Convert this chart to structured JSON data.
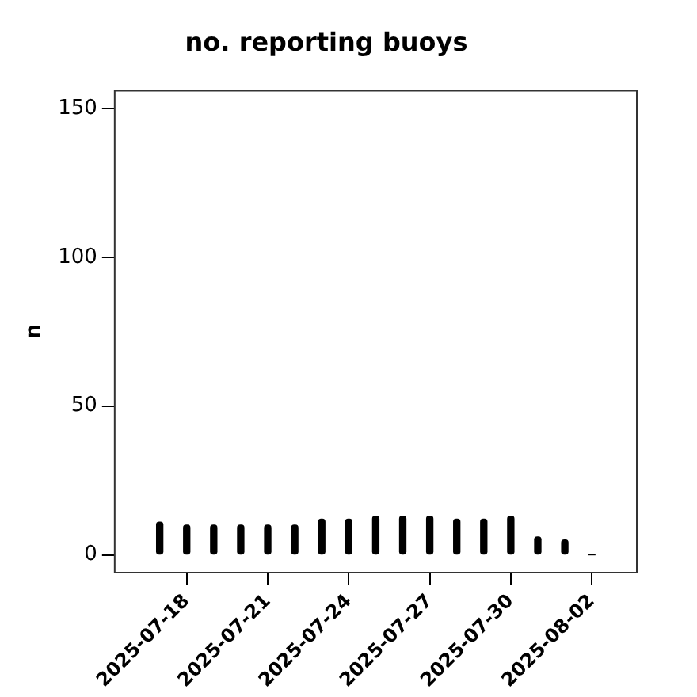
{
  "chart_data": {
    "type": "bar",
    "title": "no. reporting buoys",
    "ylabel": "n",
    "x": [
      "2025-07-17",
      "2025-07-18",
      "2025-07-19",
      "2025-07-20",
      "2025-07-21",
      "2025-07-22",
      "2025-07-23",
      "2025-07-24",
      "2025-07-25",
      "2025-07-26",
      "2025-07-27",
      "2025-07-28",
      "2025-07-29",
      "2025-07-30",
      "2025-07-31",
      "2025-08-01",
      "2025-08-02"
    ],
    "values": [
      11,
      10,
      10,
      10,
      10,
      10,
      12,
      12,
      13,
      13,
      13,
      12,
      12,
      13,
      6,
      5,
      0
    ],
    "color": "#000000",
    "xlim": [
      "2025-07-15T08:00",
      "2025-08-03T16:00"
    ],
    "xticks": [
      "2025-07-18",
      "2025-07-21",
      "2025-07-24",
      "2025-07-27",
      "2025-07-30",
      "2025-08-02"
    ],
    "ylim": [
      -6,
      156
    ],
    "yticks": [
      0,
      50,
      100,
      150
    ],
    "grid": false,
    "legend": false
  }
}
